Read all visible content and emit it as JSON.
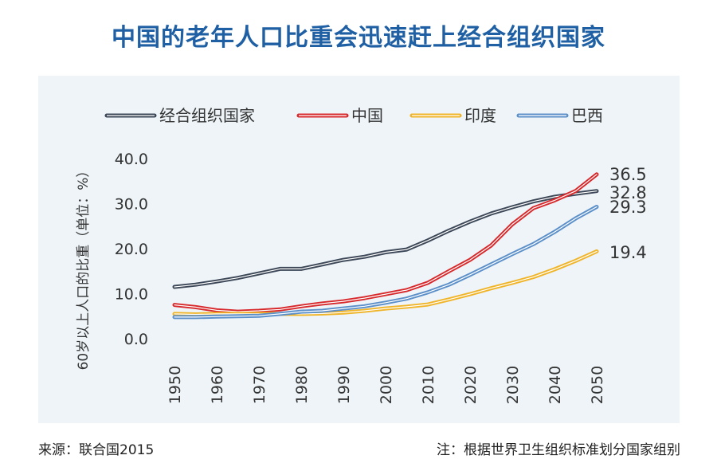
{
  "title": "中国的老年人口比重会迅速赶上经合组织国家",
  "source": "来源：联合国2015",
  "note": "注：根据世界卫生组织标准划分国家组别",
  "colors": {
    "panel_background": "#eef4f8",
    "title": "#1f5fa3"
  },
  "chart_data": {
    "type": "line",
    "ylabel": "60岁以上人口的比重（单位：%）",
    "ylim": [
      0,
      40
    ],
    "yticks": [
      "0.0",
      "10.0",
      "20.0",
      "30.0",
      "40.0"
    ],
    "xticks": [
      "1950",
      "1960",
      "1970",
      "1980",
      "1990",
      "2000",
      "2010",
      "2020",
      "2030",
      "2040",
      "2050"
    ],
    "legend_position": "top",
    "grid": false,
    "x": [
      1950,
      1955,
      1960,
      1965,
      1970,
      1975,
      1980,
      1985,
      1990,
      1995,
      2000,
      2005,
      2010,
      2015,
      2020,
      2025,
      2030,
      2035,
      2040,
      2045,
      2050
    ],
    "series": [
      {
        "name": "经合组织国家",
        "color": "#3b4656",
        "end_label": "32.8",
        "values": [
          11.5,
          12.0,
          12.7,
          13.5,
          14.5,
          15.5,
          15.5,
          16.5,
          17.5,
          18.2,
          19.2,
          19.8,
          21.8,
          24.0,
          26.0,
          27.8,
          29.2,
          30.5,
          31.5,
          32.2,
          32.8
        ]
      },
      {
        "name": "中国",
        "color": "#d7282b",
        "end_label": "36.5",
        "values": [
          7.5,
          7.0,
          6.3,
          6.0,
          6.2,
          6.5,
          7.2,
          7.8,
          8.3,
          9.0,
          9.9,
          10.8,
          12.4,
          15.0,
          17.5,
          20.7,
          25.4,
          29.0,
          30.7,
          32.8,
          36.5
        ]
      },
      {
        "name": "印度",
        "color": "#f0b429",
        "end_label": "19.4",
        "values": [
          5.5,
          5.4,
          5.5,
          5.5,
          5.5,
          5.5,
          5.5,
          5.6,
          5.8,
          6.2,
          6.7,
          7.1,
          7.6,
          8.7,
          9.9,
          11.2,
          12.4,
          13.7,
          15.4,
          17.3,
          19.4
        ]
      },
      {
        "name": "巴西",
        "color": "#5b8fc9",
        "end_label": "29.3",
        "values": [
          4.8,
          4.8,
          4.9,
          5.0,
          5.1,
          5.5,
          6.0,
          6.2,
          6.7,
          7.2,
          8.0,
          8.9,
          10.3,
          12.0,
          14.2,
          16.5,
          18.8,
          21.0,
          23.7,
          26.7,
          29.3
        ]
      }
    ]
  }
}
